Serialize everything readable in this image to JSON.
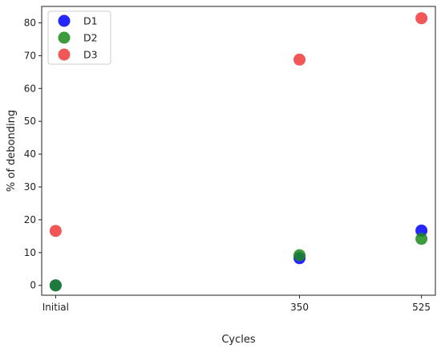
{
  "chart_data": {
    "type": "scatter",
    "title": "",
    "xlabel": "Cycles",
    "ylabel": "% of debonding",
    "categories": [
      "Initial",
      "350",
      "525"
    ],
    "x": [
      0,
      350,
      525
    ],
    "ylim": [
      -3,
      85
    ],
    "yticks": [
      0,
      10,
      20,
      30,
      40,
      50,
      60,
      70,
      80
    ],
    "grid": false,
    "legend": "top-left",
    "series": [
      {
        "name": "D1",
        "color": "#0000ff",
        "values": [
          0,
          8.3,
          16.7
        ]
      },
      {
        "name": "D2",
        "color": "#1a8a1a",
        "values": [
          0,
          9.2,
          14.2
        ]
      },
      {
        "name": "D3",
        "color": "#f03a3a",
        "values": [
          16.6,
          68.8,
          81.4
        ]
      }
    ]
  }
}
